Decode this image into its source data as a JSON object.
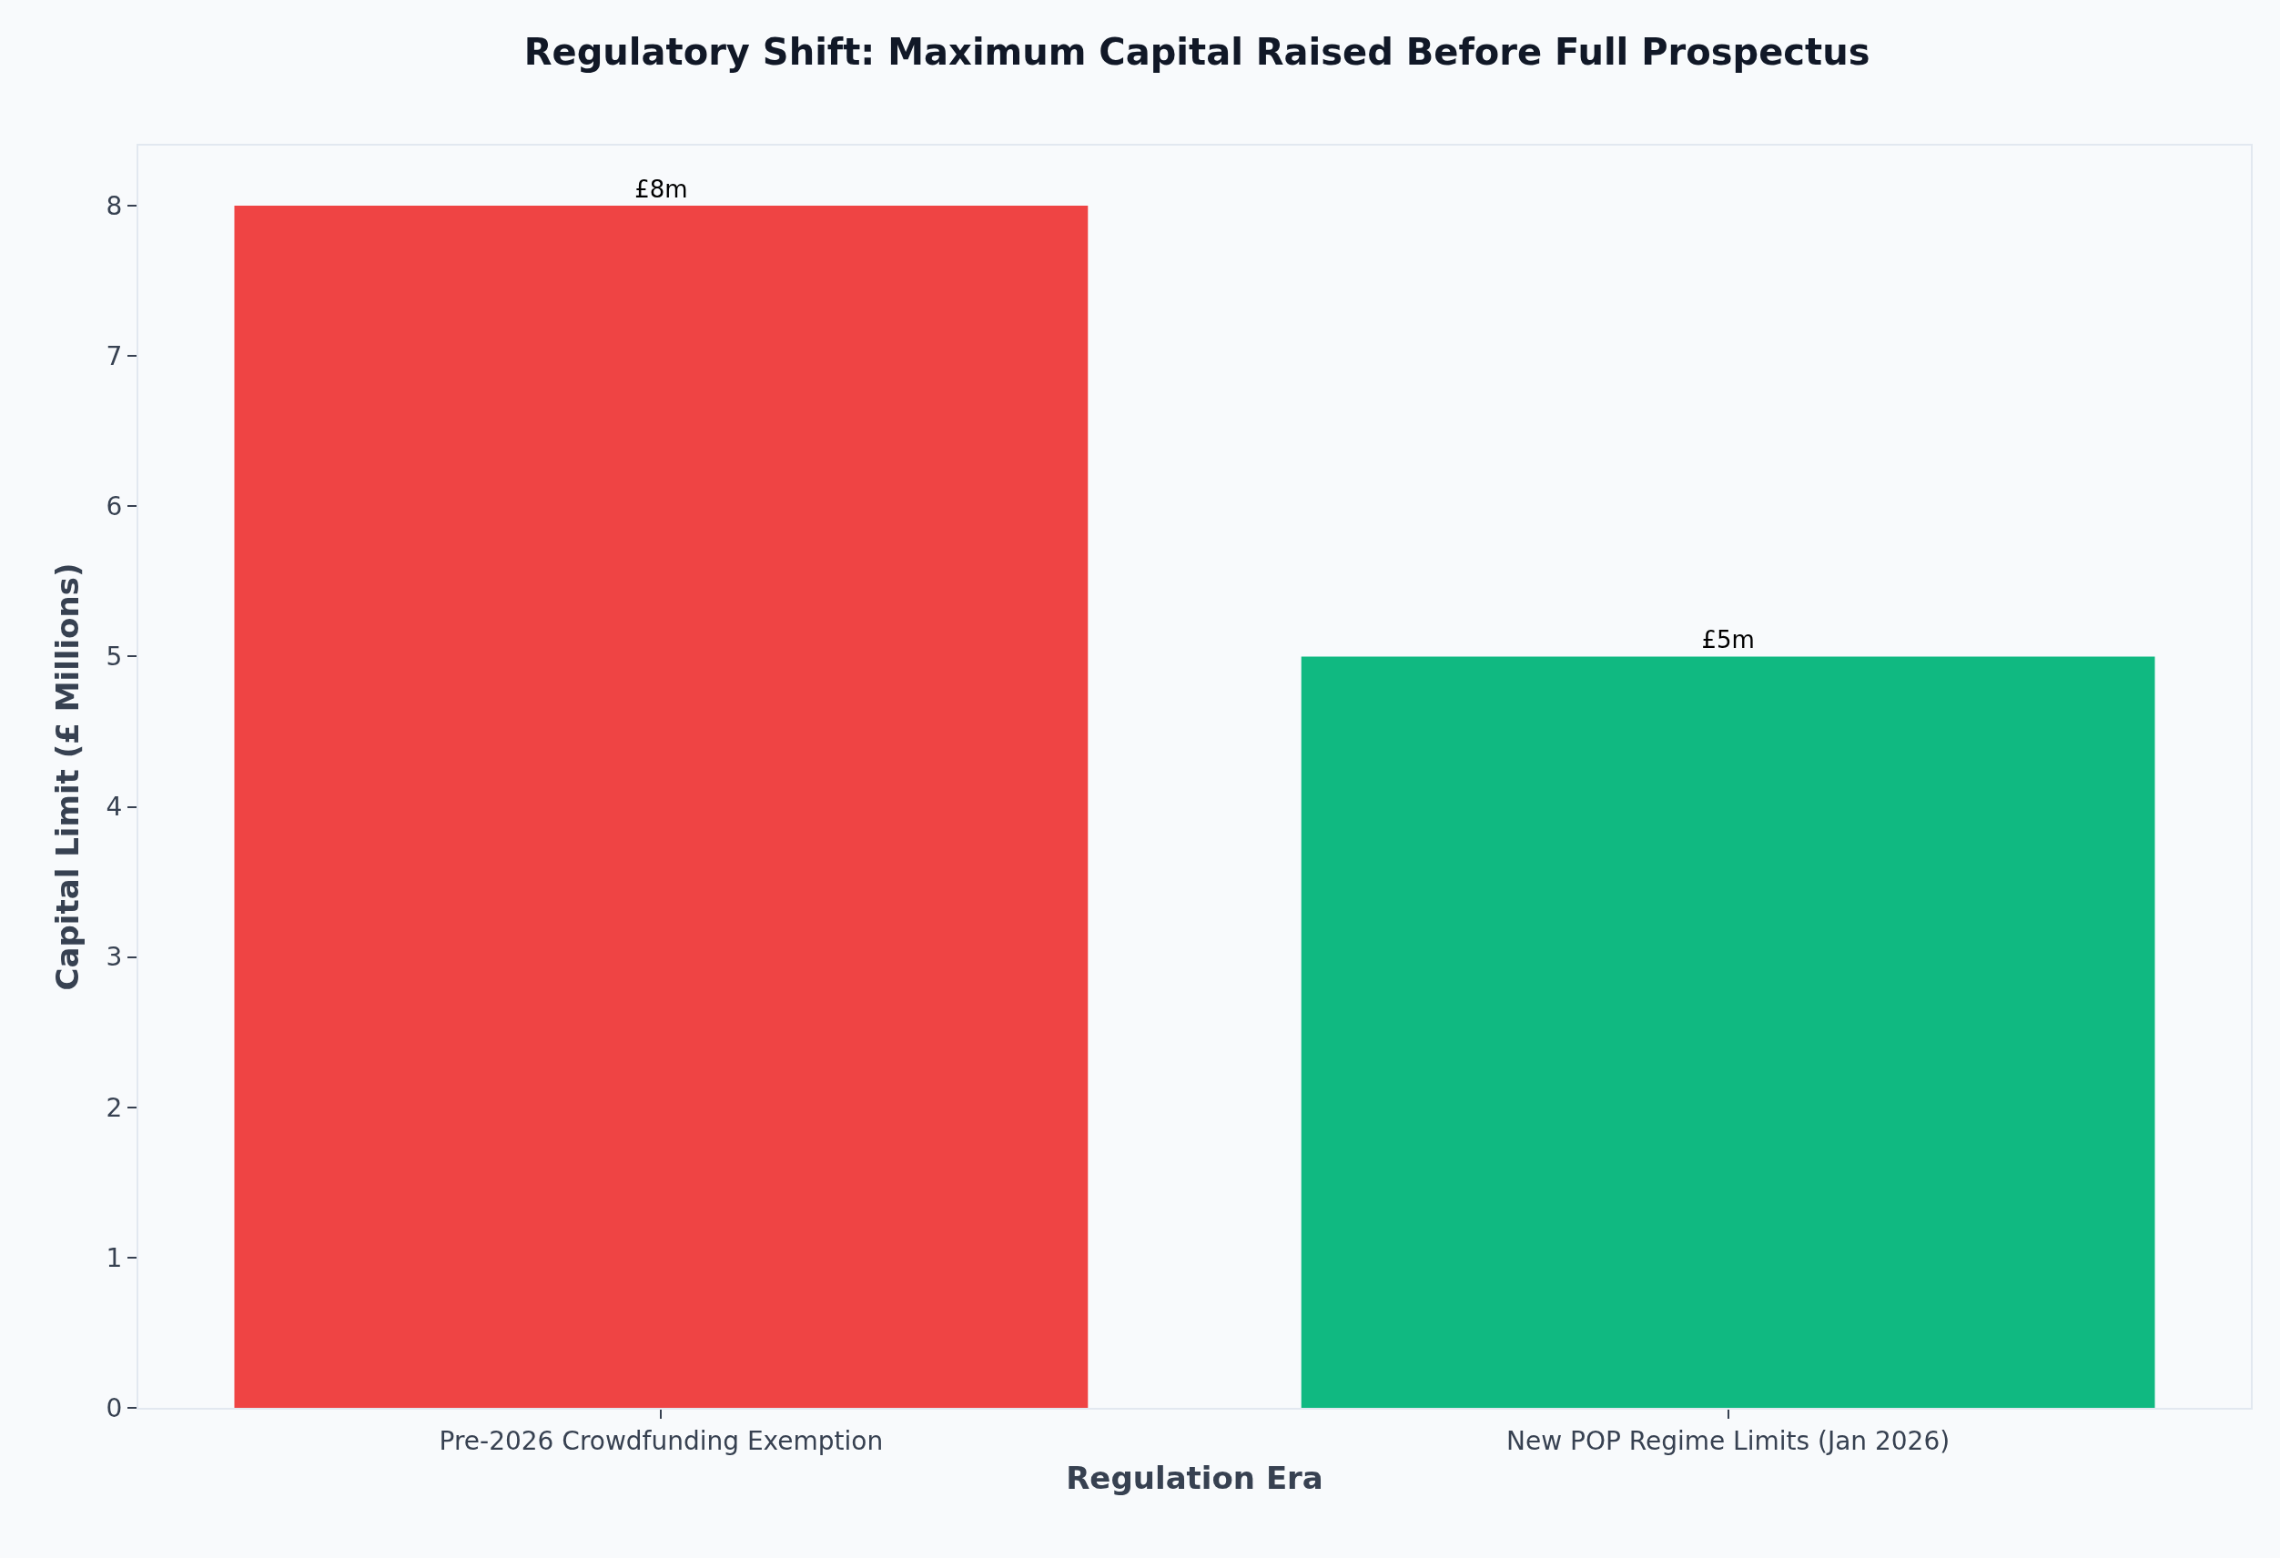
{
  "chart_data": {
    "type": "bar",
    "title": "Regulatory Shift: Maximum Capital Raised Before Full Prospectus",
    "xlabel": "Regulation Era",
    "ylabel": "Capital Limit (£ Millions)",
    "categories": [
      "Pre-2026 Crowdfunding Exemption",
      "New POP Regime Limits (Jan 2026)"
    ],
    "values": [
      8,
      5
    ],
    "colors": [
      "#ef4444",
      "#10b981"
    ],
    "value_labels": [
      "£8m",
      "£5m"
    ],
    "ylim": [
      0,
      8.4
    ],
    "yticks": [
      0,
      1,
      2,
      3,
      4,
      5,
      6,
      7,
      8
    ],
    "grid": false,
    "legend": false
  }
}
